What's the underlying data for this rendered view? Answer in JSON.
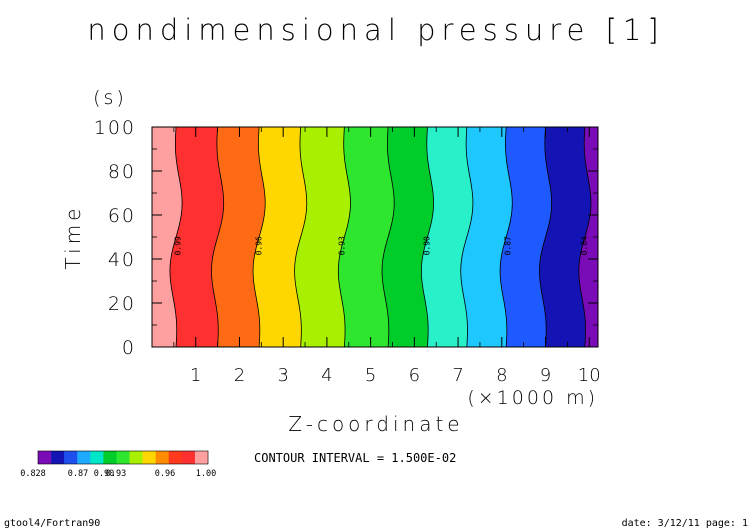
{
  "chart_data": {
    "type": "contour",
    "title": "nondimensional pressure [1]",
    "xlabel": "Z-coordinate",
    "x_unit": "(×1000 m)",
    "ylabel": "Time",
    "y_unit": "(s)",
    "xlim": [
      0,
      10.2
    ],
    "ylim": [
      0,
      100
    ],
    "x_ticks": [
      "1",
      "2",
      "3",
      "4",
      "5",
      "6",
      "7",
      "8",
      "9",
      "10"
    ],
    "y_ticks": [
      "0",
      "20",
      "40",
      "60",
      "80",
      "100"
    ],
    "grid": false,
    "contour_labels": [
      {
        "text": "0.99",
        "x": 0.65,
        "y": 46
      },
      {
        "text": "0.96",
        "x": 2.5,
        "y": 46
      },
      {
        "text": "0.93",
        "x": 4.4,
        "y": 46
      },
      {
        "text": "0.90",
        "x": 6.35,
        "y": 46
      },
      {
        "text": "0.87",
        "x": 8.2,
        "y": 46
      },
      {
        "text": "0.84",
        "x": 9.95,
        "y": 46
      }
    ],
    "contour_interval_text": "CONTOUR INTERVAL = 1.500E-02",
    "colorbar": {
      "colors": [
        "#7a0cb8",
        "#1414b4",
        "#1e50f0",
        "#1eaaff",
        "#00e6c8",
        "#00cc2a",
        "#2ee62e",
        "#a8f000",
        "#ffd700",
        "#ff8c00",
        "#ff3a1e",
        "#ff3030",
        "#ffa0a0"
      ],
      "tick_labels": [
        "0.828",
        "0.87",
        "0.90",
        "0.93",
        "0.96",
        "1.00"
      ]
    },
    "bands": [
      {
        "color": "#ffa0a0"
      },
      {
        "color": "#ff3030"
      },
      {
        "color": "#ff6a14"
      },
      {
        "color": "#ffd700"
      },
      {
        "color": "#a8f000"
      },
      {
        "color": "#2ee62e"
      },
      {
        "color": "#00cc2a"
      },
      {
        "color": "#28f0c8"
      },
      {
        "color": "#1ec8ff"
      },
      {
        "color": "#1e5aff"
      },
      {
        "color": "#1414b4"
      },
      {
        "color": "#7a0cb8"
      }
    ],
    "boundaries_x": [
      0.55,
      1.5,
      2.45,
      3.4,
      4.4,
      5.4,
      6.3,
      7.2,
      8.1,
      9.0,
      9.9
    ]
  },
  "footer": {
    "left": "gtool4/Fortran90",
    "right": "date: 3/12/11 page: 1"
  }
}
